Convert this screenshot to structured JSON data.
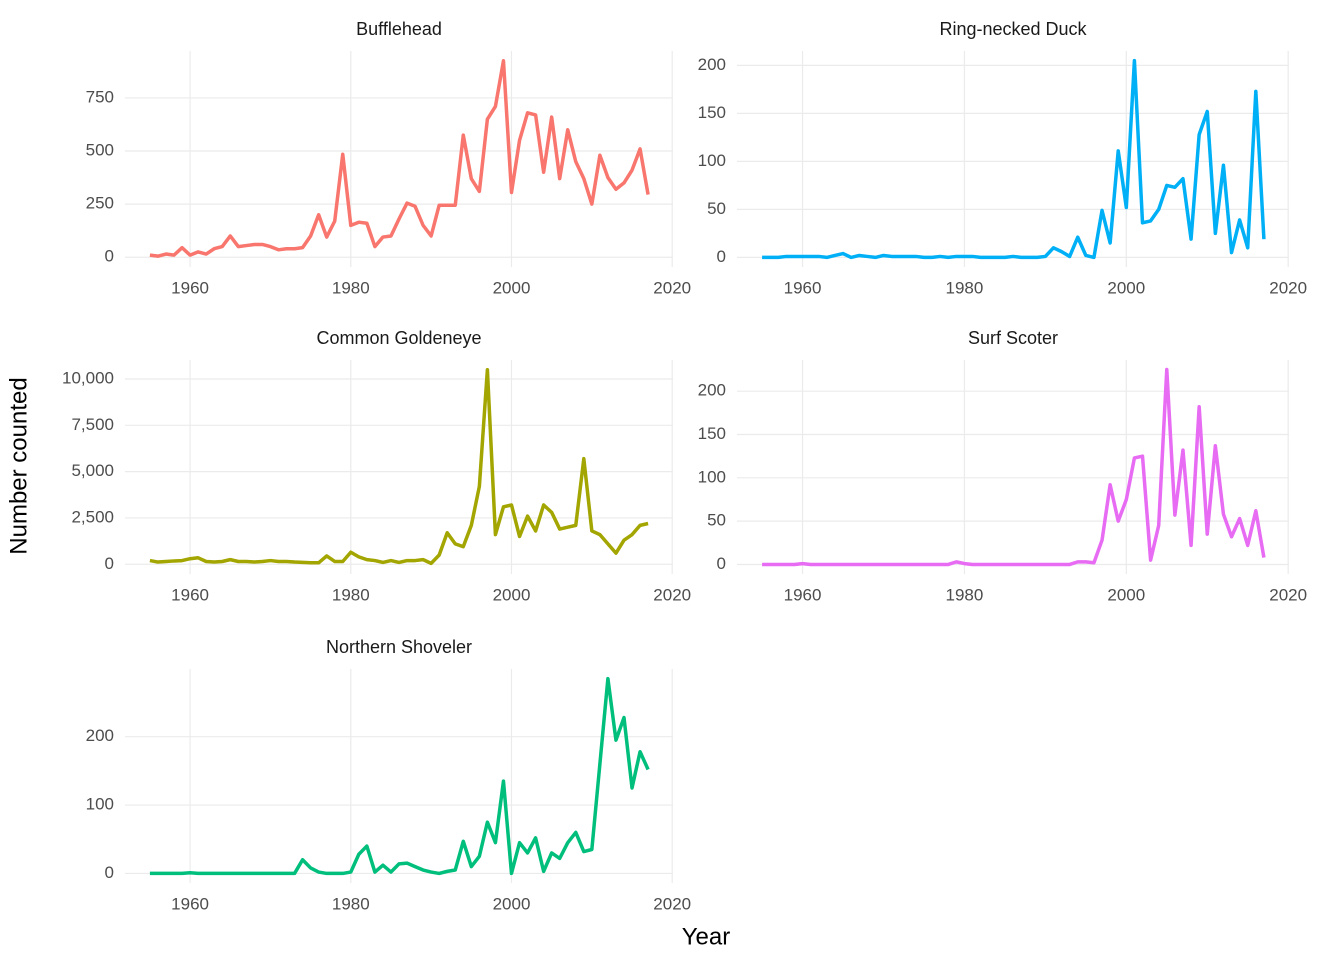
{
  "xlabel": "Year",
  "ylabel": "Number counted",
  "chart_data": [
    {
      "type": "line",
      "title": "Bufflehead",
      "color": "#F8766D",
      "x": [
        1955,
        1956,
        1957,
        1958,
        1959,
        1960,
        1961,
        1962,
        1963,
        1964,
        1965,
        1966,
        1967,
        1968,
        1969,
        1970,
        1971,
        1972,
        1973,
        1974,
        1975,
        1976,
        1977,
        1978,
        1979,
        1980,
        1981,
        1982,
        1983,
        1984,
        1985,
        1986,
        1987,
        1988,
        1989,
        1990,
        1991,
        1992,
        1993,
        1994,
        1995,
        1996,
        1997,
        1998,
        1999,
        2000,
        2001,
        2002,
        2003,
        2004,
        2005,
        2006,
        2007,
        2008,
        2009,
        2010,
        2011,
        2012,
        2013,
        2014,
        2015,
        2016,
        2017
      ],
      "values": [
        10,
        5,
        15,
        10,
        45,
        10,
        25,
        15,
        40,
        50,
        100,
        50,
        55,
        60,
        60,
        50,
        35,
        40,
        40,
        45,
        100,
        200,
        95,
        170,
        485,
        150,
        165,
        160,
        50,
        95,
        100,
        180,
        255,
        240,
        150,
        100,
        245,
        245,
        245,
        575,
        370,
        310,
        650,
        710,
        925,
        305,
        550,
        680,
        670,
        400,
        660,
        370,
        600,
        450,
        370,
        250,
        480,
        375,
        320,
        350,
        410,
        510,
        295
      ],
      "xlim": [
        1951.9,
        2020.1
      ],
      "xticks": [
        1960,
        1980,
        2000,
        2020
      ],
      "ylim": [
        -46,
        971
      ],
      "yticks": [
        0,
        250,
        500,
        750
      ]
    },
    {
      "type": "line",
      "title": "Ring-necked Duck",
      "color": "#00B0F6",
      "x": [
        1955,
        1956,
        1957,
        1958,
        1959,
        1960,
        1961,
        1962,
        1963,
        1964,
        1965,
        1966,
        1967,
        1968,
        1969,
        1970,
        1971,
        1972,
        1973,
        1974,
        1975,
        1976,
        1977,
        1978,
        1979,
        1980,
        1981,
        1982,
        1983,
        1984,
        1985,
        1986,
        1987,
        1988,
        1989,
        1990,
        1991,
        1992,
        1993,
        1994,
        1995,
        1996,
        1997,
        1998,
        1999,
        2000,
        2001,
        2002,
        2003,
        2004,
        2005,
        2006,
        2007,
        2008,
        2009,
        2010,
        2011,
        2012,
        2013,
        2014,
        2015,
        2016,
        2017
      ],
      "values": [
        0,
        0,
        0,
        1,
        1,
        1,
        1,
        1,
        0,
        2,
        4,
        0,
        2,
        1,
        0,
        2,
        1,
        1,
        1,
        1,
        0,
        0,
        1,
        0,
        1,
        1,
        1,
        0,
        0,
        0,
        0,
        1,
        0,
        0,
        0,
        1,
        10,
        6,
        1,
        21,
        2,
        0,
        49,
        15,
        111,
        52,
        205,
        36,
        38,
        50,
        75,
        73,
        82,
        19,
        128,
        152,
        25,
        96,
        5,
        39,
        10,
        173,
        19
      ],
      "xlim": [
        1951.9,
        2020.1
      ],
      "xticks": [
        1960,
        1980,
        2000,
        2020
      ],
      "ylim": [
        -10,
        215
      ],
      "yticks": [
        0,
        50,
        100,
        150,
        200
      ]
    },
    {
      "type": "line",
      "title": "Common Goldeneye",
      "color": "#A3A500",
      "x": [
        1955,
        1956,
        1957,
        1958,
        1959,
        1960,
        1961,
        1962,
        1963,
        1964,
        1965,
        1966,
        1967,
        1968,
        1969,
        1970,
        1971,
        1972,
        1973,
        1974,
        1975,
        1976,
        1977,
        1978,
        1979,
        1980,
        1981,
        1982,
        1983,
        1984,
        1985,
        1986,
        1987,
        1988,
        1989,
        1990,
        1991,
        1992,
        1993,
        1994,
        1995,
        1996,
        1997,
        1998,
        1999,
        2000,
        2001,
        2002,
        2003,
        2004,
        2005,
        2006,
        2007,
        2008,
        2009,
        2010,
        2011,
        2012,
        2013,
        2014,
        2015,
        2016,
        2017
      ],
      "values": [
        200,
        120,
        150,
        180,
        200,
        300,
        350,
        150,
        120,
        150,
        250,
        150,
        150,
        120,
        150,
        200,
        150,
        150,
        120,
        100,
        80,
        80,
        450,
        150,
        150,
        650,
        400,
        250,
        200,
        100,
        200,
        100,
        200,
        200,
        250,
        50,
        500,
        1700,
        1100,
        950,
        2100,
        4200,
        10500,
        1600,
        3100,
        3200,
        1500,
        2600,
        1800,
        3200,
        2800,
        1900,
        2000,
        2100,
        5700,
        1800,
        1600,
        1100,
        600,
        1300,
        1600,
        2100,
        2200
      ],
      "xlim": [
        1951.9,
        2020.1
      ],
      "xticks": [
        1960,
        1980,
        2000,
        2020
      ],
      "ylim": [
        -525,
        11025
      ],
      "yticks": [
        0,
        {
          "value": 2500,
          "label": "2,500"
        },
        {
          "value": 5000,
          "label": "5,000"
        },
        {
          "value": 7500,
          "label": "7,500"
        },
        {
          "value": 10000,
          "label": "10,000"
        }
      ]
    },
    {
      "type": "line",
      "title": "Surf Scoter",
      "color": "#E76BF3",
      "x": [
        1955,
        1956,
        1957,
        1958,
        1959,
        1960,
        1961,
        1962,
        1963,
        1964,
        1965,
        1966,
        1967,
        1968,
        1969,
        1970,
        1971,
        1972,
        1973,
        1974,
        1975,
        1976,
        1977,
        1978,
        1979,
        1980,
        1981,
        1982,
        1983,
        1984,
        1985,
        1986,
        1987,
        1988,
        1989,
        1990,
        1991,
        1992,
        1993,
        1994,
        1995,
        1996,
        1997,
        1998,
        1999,
        2000,
        2001,
        2002,
        2003,
        2004,
        2005,
        2006,
        2007,
        2008,
        2009,
        2010,
        2011,
        2012,
        2013,
        2014,
        2015,
        2016,
        2017
      ],
      "values": [
        0,
        0,
        0,
        0,
        0,
        1,
        0,
        0,
        0,
        0,
        0,
        0,
        0,
        0,
        0,
        0,
        0,
        0,
        0,
        0,
        0,
        0,
        0,
        0,
        3,
        1,
        0,
        0,
        0,
        0,
        0,
        0,
        0,
        0,
        0,
        0,
        0,
        0,
        0,
        3,
        3,
        2,
        28,
        92,
        50,
        75,
        123,
        125,
        5,
        45,
        225,
        57,
        132,
        22,
        182,
        35,
        137,
        58,
        32,
        53,
        22,
        62,
        8
      ],
      "xlim": [
        1951.9,
        2020.1
      ],
      "xticks": [
        1960,
        1980,
        2000,
        2020
      ],
      "ylim": [
        -11,
        236
      ],
      "yticks": [
        0,
        50,
        100,
        150,
        200
      ]
    },
    {
      "type": "line",
      "title": "Northern Shoveler",
      "color": "#00BF7D",
      "x": [
        1955,
        1956,
        1957,
        1958,
        1959,
        1960,
        1961,
        1962,
        1963,
        1964,
        1965,
        1966,
        1967,
        1968,
        1969,
        1970,
        1971,
        1972,
        1973,
        1974,
        1975,
        1976,
        1977,
        1978,
        1979,
        1980,
        1981,
        1982,
        1983,
        1984,
        1985,
        1986,
        1987,
        1988,
        1989,
        1990,
        1991,
        1992,
        1993,
        1994,
        1995,
        1996,
        1997,
        1998,
        1999,
        2000,
        2001,
        2002,
        2003,
        2004,
        2005,
        2006,
        2007,
        2008,
        2009,
        2010,
        2011,
        2012,
        2013,
        2014,
        2015,
        2016,
        2017
      ],
      "values": [
        0,
        0,
        0,
        0,
        0,
        1,
        0,
        0,
        0,
        0,
        0,
        0,
        0,
        0,
        0,
        0,
        0,
        0,
        0,
        20,
        8,
        2,
        0,
        0,
        0,
        2,
        28,
        40,
        2,
        12,
        2,
        14,
        15,
        10,
        5,
        2,
        0,
        3,
        5,
        47,
        10,
        25,
        75,
        45,
        135,
        0,
        45,
        30,
        52,
        3,
        30,
        22,
        45,
        60,
        32,
        35,
        160,
        285,
        195,
        228,
        125,
        178,
        152
      ],
      "xlim": [
        1951.9,
        2020.1
      ],
      "xticks": [
        1960,
        1980,
        2000,
        2020
      ],
      "ylim": [
        -14,
        299
      ],
      "yticks": [
        0,
        100,
        200
      ]
    }
  ]
}
